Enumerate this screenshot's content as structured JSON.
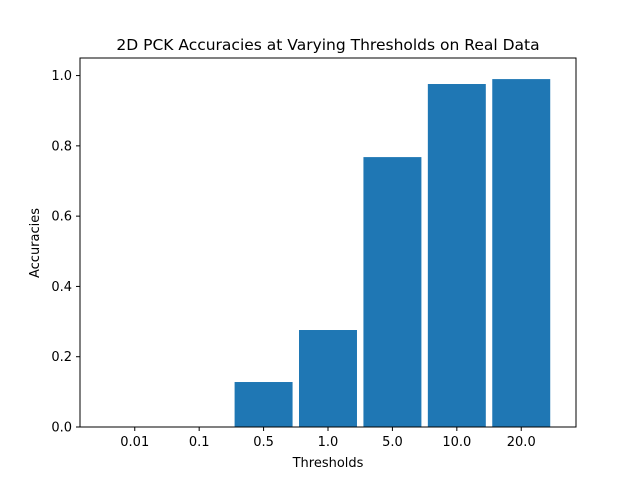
{
  "chart_data": {
    "type": "bar",
    "title": "2D PCK Accuracies at Varying Thresholds on Real Data",
    "xlabel": "Thresholds",
    "ylabel": "Accuracies",
    "categories": [
      "0.01",
      "0.1",
      "0.5",
      "1.0",
      "5.0",
      "10.0",
      "20.0"
    ],
    "values": [
      0.0,
      0.0,
      0.128,
      0.276,
      0.768,
      0.976,
      0.99
    ],
    "ylim": [
      0,
      1.05
    ],
    "yticks": [
      0.0,
      0.2,
      0.4,
      0.6,
      0.8,
      1.0
    ],
    "ytick_labels": [
      "0.0",
      "0.2",
      "0.4",
      "0.6",
      "0.8",
      "1.0"
    ],
    "bar_color": "#1f77b4",
    "grid": false
  }
}
